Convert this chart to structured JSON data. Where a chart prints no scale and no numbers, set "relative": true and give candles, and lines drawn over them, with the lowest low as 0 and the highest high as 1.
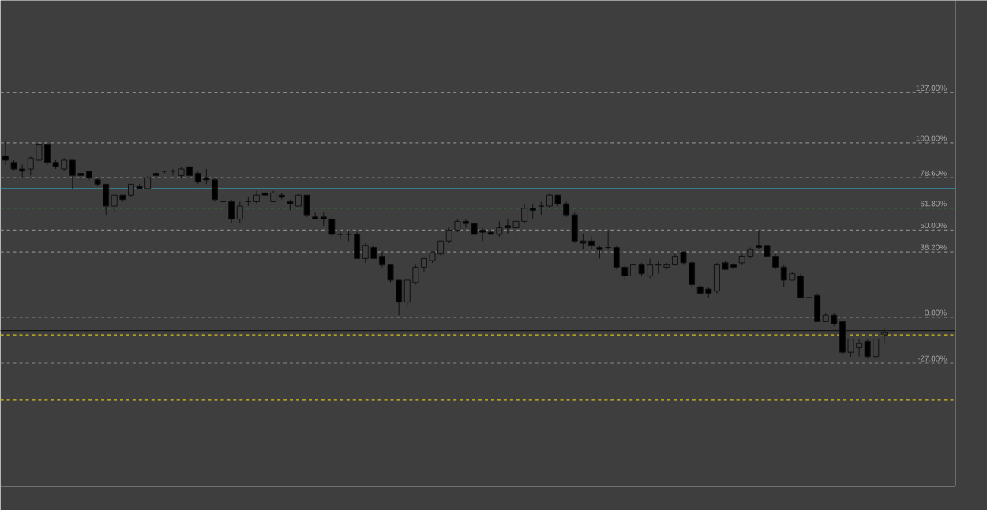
{
  "chart_data": {
    "type": "candlestick",
    "relative": true,
    "categories": [
      null,
      null,
      null,
      null,
      null,
      null,
      null,
      null,
      null,
      null,
      null,
      null,
      null,
      null,
      null,
      null,
      null,
      null,
      null,
      null,
      null,
      null,
      null,
      null,
      null,
      null,
      null,
      null,
      null,
      null,
      null,
      null,
      null,
      null,
      null,
      null,
      null,
      null,
      null,
      null,
      null,
      null,
      null,
      null,
      null,
      null,
      null,
      null,
      null,
      null,
      null,
      null,
      null,
      null,
      null,
      null,
      null,
      null,
      null,
      null,
      null,
      null,
      null,
      null,
      null,
      null,
      null,
      null,
      null,
      null,
      null,
      null,
      null,
      null,
      null,
      null,
      null,
      null,
      null,
      null,
      null,
      null,
      null,
      null,
      null,
      null,
      null,
      null,
      null,
      null,
      null,
      null,
      null,
      null,
      null,
      null,
      null,
      null,
      null,
      null,
      null,
      null,
      null,
      null,
      null,
      null
    ],
    "ohlc": [
      [
        0.93,
        1,
        0.89,
        0.91
      ],
      [
        0.9,
        0.91,
        0.86,
        0.87
      ],
      [
        0.87,
        0.89,
        0.83,
        0.86
      ],
      [
        0.87,
        0.93,
        0.84,
        0.92
      ],
      [
        0.91,
        0.99,
        0.9,
        0.98
      ],
      [
        0.98,
        0.99,
        0.89,
        0.9
      ],
      [
        0.9,
        0.91,
        0.87,
        0.88
      ],
      [
        0.87,
        0.92,
        0.86,
        0.91
      ],
      [
        0.91,
        0.91,
        0.78,
        0.84
      ],
      [
        0.85,
        0.86,
        0.82,
        0.84
      ],
      [
        0.86,
        0.86,
        0.82,
        0.83
      ],
      [
        0.82,
        0.83,
        0.79,
        0.8
      ],
      [
        0.8,
        0.8,
        0.66,
        0.7
      ],
      [
        0.7,
        0.75,
        0.67,
        0.75
      ],
      [
        0.75,
        0.75,
        0.72,
        0.73
      ],
      [
        0.75,
        0.8,
        0.74,
        0.8
      ],
      [
        0.79,
        0.8,
        0.78,
        0.78
      ],
      [
        0.78,
        0.84,
        0.78,
        0.83
      ],
      [
        0.85,
        0.86,
        0.83,
        0.84
      ],
      [
        0.86,
        0.86,
        0.85,
        0.86
      ],
      [
        0.86,
        0.87,
        0.84,
        0.86
      ],
      [
        0.84,
        0.88,
        0.83,
        0.87
      ],
      [
        0.88,
        0.88,
        0.83,
        0.84
      ],
      [
        0.85,
        0.86,
        0.8,
        0.81
      ],
      [
        0.83,
        0.87,
        0.8,
        0.82
      ],
      [
        0.82,
        0.83,
        0.72,
        0.73
      ],
      [
        0.72,
        0.75,
        0.71,
        0.72
      ],
      [
        0.72,
        0.73,
        0.62,
        0.64
      ],
      [
        0.64,
        0.72,
        0.62,
        0.7
      ],
      [
        0.72,
        0.74,
        0.7,
        0.72
      ],
      [
        0.72,
        0.77,
        0.71,
        0.75
      ],
      [
        0.76,
        0.78,
        0.74,
        0.75
      ],
      [
        0.72,
        0.77,
        0.72,
        0.76
      ],
      [
        0.75,
        0.76,
        0.73,
        0.74
      ],
      [
        0.72,
        0.73,
        0.68,
        0.71
      ],
      [
        0.7,
        0.76,
        0.7,
        0.75
      ],
      [
        0.75,
        0.75,
        0.65,
        0.66
      ],
      [
        0.65,
        0.67,
        0.64,
        0.64
      ],
      [
        0.65,
        0.67,
        0.61,
        0.64
      ],
      [
        0.64,
        0.66,
        0.56,
        0.57
      ],
      [
        0.57,
        0.59,
        0.55,
        0.57
      ],
      [
        0.57,
        0.59,
        0.54,
        0.57
      ],
      [
        0.57,
        0.58,
        0.46,
        0.46
      ],
      [
        0.46,
        0.53,
        0.44,
        0.52
      ],
      [
        0.51,
        0.52,
        0.46,
        0.46
      ],
      [
        0.47,
        0.49,
        0.42,
        0.43
      ],
      [
        0.43,
        0.43,
        0.35,
        0.36
      ],
      [
        0.36,
        0.36,
        0.2,
        0.26
      ],
      [
        0.26,
        0.36,
        0.24,
        0.36
      ],
      [
        0.35,
        0.43,
        0.34,
        0.42
      ],
      [
        0.42,
        0.46,
        0.4,
        0.46
      ],
      [
        0.45,
        0.49,
        0.44,
        0.49
      ],
      [
        0.48,
        0.54,
        0.47,
        0.54
      ],
      [
        0.54,
        0.6,
        0.53,
        0.59
      ],
      [
        0.59,
        0.64,
        0.58,
        0.63
      ],
      [
        0.63,
        0.64,
        0.6,
        0.62
      ],
      [
        0.62,
        0.62,
        0.57,
        0.57
      ],
      [
        0.59,
        0.6,
        0.54,
        0.58
      ],
      [
        0.58,
        0.59,
        0.57,
        0.57
      ],
      [
        0.57,
        0.63,
        0.56,
        0.6
      ],
      [
        0.61,
        0.64,
        0.57,
        0.6
      ],
      [
        0.6,
        0.65,
        0.54,
        0.63
      ],
      [
        0.63,
        0.71,
        0.62,
        0.69
      ],
      [
        0.69,
        0.71,
        0.64,
        0.68
      ],
      [
        0.7,
        0.72,
        0.66,
        0.7
      ],
      [
        0.7,
        0.76,
        0.69,
        0.75
      ],
      [
        0.75,
        0.75,
        0.7,
        0.71
      ],
      [
        0.71,
        0.72,
        0.65,
        0.66
      ],
      [
        0.66,
        0.67,
        0.53,
        0.54
      ],
      [
        0.54,
        0.57,
        0.5,
        0.53
      ],
      [
        0.54,
        0.56,
        0.5,
        0.52
      ],
      [
        0.51,
        0.52,
        0.46,
        0.5
      ],
      [
        0.51,
        0.59,
        0.5,
        0.51
      ],
      [
        0.51,
        0.52,
        0.41,
        0.42
      ],
      [
        0.42,
        0.43,
        0.36,
        0.38
      ],
      [
        0.38,
        0.43,
        0.38,
        0.43
      ],
      [
        0.43,
        0.44,
        0.38,
        0.39
      ],
      [
        0.38,
        0.46,
        0.37,
        0.43
      ],
      [
        0.43,
        0.45,
        0.39,
        0.43
      ],
      [
        0.42,
        0.44,
        0.41,
        0.43
      ],
      [
        0.43,
        0.48,
        0.43,
        0.47
      ],
      [
        0.49,
        0.49,
        0.43,
        0.44
      ],
      [
        0.44,
        0.45,
        0.33,
        0.34
      ],
      [
        0.33,
        0.34,
        0.29,
        0.3
      ],
      [
        0.32,
        0.33,
        0.28,
        0.3
      ],
      [
        0.31,
        0.44,
        0.3,
        0.43
      ],
      [
        0.44,
        0.45,
        0.41,
        0.41
      ],
      [
        0.43,
        0.44,
        0.41,
        0.42
      ],
      [
        0.44,
        0.48,
        0.43,
        0.47
      ],
      [
        0.47,
        0.51,
        0.46,
        0.5
      ],
      [
        0.52,
        0.59,
        0.5,
        0.51
      ],
      [
        0.52,
        0.53,
        0.46,
        0.47
      ],
      [
        0.47,
        0.48,
        0.41,
        0.42
      ],
      [
        0.42,
        0.43,
        0.33,
        0.36
      ],
      [
        0.36,
        0.4,
        0.36,
        0.39
      ],
      [
        0.38,
        0.39,
        0.28,
        0.28
      ],
      [
        0.28,
        0.33,
        0.24,
        0.28
      ],
      [
        0.29,
        0.3,
        0.17,
        0.17
      ],
      [
        0.17,
        0.21,
        0.17,
        0.2
      ],
      [
        0.2,
        0.21,
        0.15,
        0.16
      ],
      [
        0.17,
        0.17,
        0.02,
        0.03
      ],
      [
        0.03,
        0.09,
        0.01,
        0.09
      ],
      [
        0.05,
        0.09,
        0.01,
        0.07
      ],
      [
        0.08,
        0.09,
        0,
        0.01
      ],
      [
        0.01,
        0.09,
        0,
        0.09
      ],
      [
        0.11,
        0.14,
        0.07,
        0.12
      ]
    ],
    "ref_lines": [
      {
        "axis": "y",
        "value": 1.22,
        "color": "#8a8a8a",
        "line_style": "dashed"
      },
      {
        "axis": "y",
        "value": 0.99,
        "color": "#8a8a8a",
        "line_style": "dashed"
      },
      {
        "axis": "y",
        "value": 0.83,
        "color": "#8a8a8a",
        "line_style": "dashed"
      },
      {
        "axis": "y",
        "value": 0.78,
        "color": "#3a8fa8",
        "line_style": "solid"
      },
      {
        "axis": "y",
        "value": 0.69,
        "color": "#2e9a3a",
        "line_style": "dashed"
      },
      {
        "axis": "y",
        "value": 0.59,
        "color": "#8a8a8a",
        "line_style": "dashed"
      },
      {
        "axis": "y",
        "value": 0.49,
        "color": "#8a8a8a",
        "line_style": "dashed"
      },
      {
        "axis": "y",
        "value": 0.19,
        "color": "#8a8a8a",
        "line_style": "dashed"
      },
      {
        "axis": "y",
        "value": 0.13,
        "color": "#151515",
        "line_style": "solid"
      },
      {
        "axis": "y",
        "value": 0.11,
        "color": "#d8c21a",
        "line_style": "dashed"
      },
      {
        "axis": "y",
        "value": -0.02,
        "color": "#8a8a8a",
        "line_style": "dashed"
      },
      {
        "axis": "y",
        "value": -0.19,
        "color": "#d8c21a",
        "line_style": "dashed"
      }
    ],
    "annotations": [
      {
        "text": "127.00%",
        "y": 1.22
      },
      {
        "text": "100.00%",
        "y": 0.99
      },
      {
        "text": "78.60%",
        "y": 0.83
      },
      {
        "text": "61.80%",
        "y": 0.69
      },
      {
        "text": "50.00%",
        "y": 0.59
      },
      {
        "text": "38.20%",
        "y": 0.49
      },
      {
        "text": "0.00%",
        "y": 0.19
      },
      {
        "text": "-27.00%",
        "y": -0.02
      }
    ]
  }
}
